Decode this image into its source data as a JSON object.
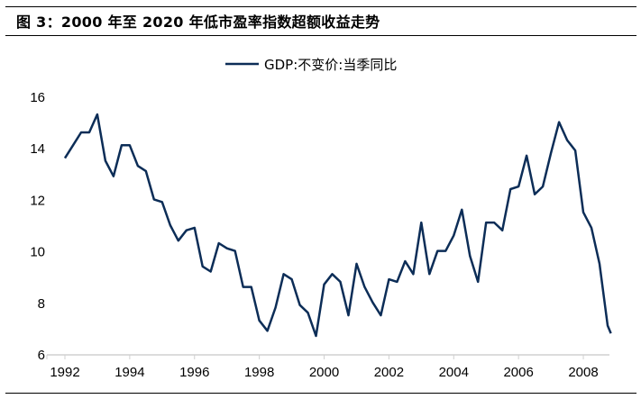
{
  "chart_data": {
    "type": "line",
    "title": "图 3：2000 年至 2020 年低市盈率指数超额收益走势",
    "legend": [
      "GDP:不变价:当季同比"
    ],
    "legend_position": "top-center",
    "xlabel": "",
    "ylabel": "",
    "xlim": [
      1992,
      2008.85
    ],
    "ylim": [
      6,
      16
    ],
    "x_ticks": [
      "1992",
      "1994",
      "1996",
      "1998",
      "2000",
      "2002",
      "2004",
      "2006",
      "2008"
    ],
    "y_ticks": [
      "6",
      "8",
      "10",
      "12",
      "14",
      "16"
    ],
    "grid": false,
    "color": "#0c2d57",
    "series": [
      {
        "name": "GDP:不变价:当季同比",
        "start": 1992,
        "step": 0.25,
        "values": [
          13.6,
          14.1,
          14.6,
          14.6,
          15.3,
          13.5,
          12.9,
          14.1,
          14.1,
          13.3,
          13.1,
          12.0,
          11.9,
          11.0,
          10.4,
          10.8,
          10.9,
          9.4,
          9.2,
          10.3,
          10.1,
          10.0,
          8.6,
          8.6,
          7.3,
          6.9,
          7.8,
          9.1,
          8.9,
          7.9,
          7.6,
          6.7,
          8.7,
          9.1,
          8.8,
          7.5,
          9.5,
          8.6,
          8.0,
          7.5,
          8.9,
          8.8,
          9.6,
          9.1,
          11.1,
          9.1,
          10.0,
          10.0,
          10.6,
          11.6,
          9.8,
          8.8,
          11.1,
          11.1,
          10.8,
          12.4,
          12.5,
          13.7,
          12.2,
          12.5,
          13.8,
          15.0,
          14.3,
          13.9,
          11.5,
          10.9,
          9.5,
          7.1,
          6.8
        ]
      }
    ]
  }
}
